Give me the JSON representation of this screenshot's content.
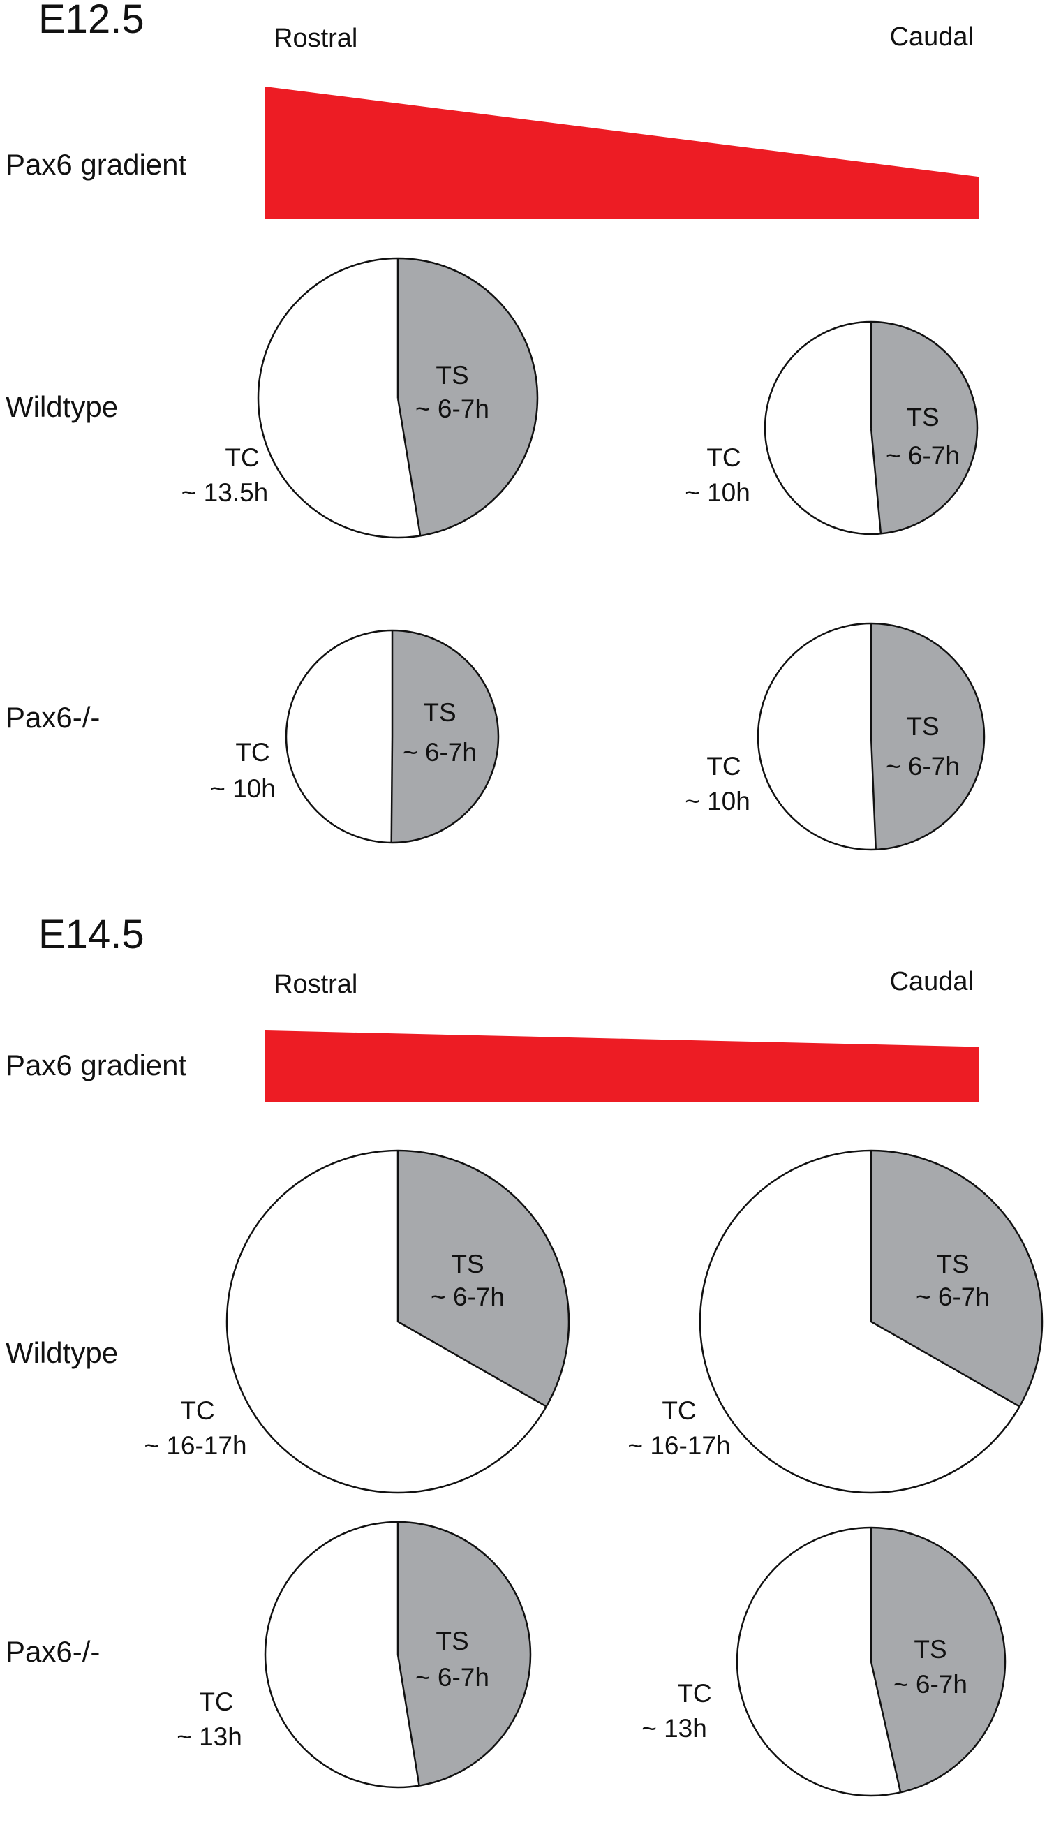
{
  "colors": {
    "gradient_fill": "#ED1C24",
    "ts_fill": "#A7A9AC",
    "tc_fill": "#FFFFFF",
    "stroke": "#111111"
  },
  "panels": [
    {
      "stage": "E12.5",
      "rostral_label": "Rostral",
      "caudal_label": "Caudal",
      "gradient_label": "Pax6 gradient",
      "gradient": {
        "shape": "wedge",
        "rostral_level": 1.0,
        "caudal_level": 0.32
      },
      "rows": [
        {
          "label": "Wildtype",
          "cycles": [
            {
              "position": "rostral",
              "ts_label": "TS",
              "ts_value": "~ 6-7h",
              "tc_label": "TC",
              "tc_value": "~ 13.5h"
            },
            {
              "position": "caudal",
              "ts_label": "TS",
              "ts_value": "~ 6-7h",
              "tc_label": "TC",
              "tc_value": "~ 10h"
            }
          ]
        },
        {
          "label": "Pax6-/-",
          "cycles": [
            {
              "position": "rostral",
              "ts_label": "TS",
              "ts_value": "~ 6-7h",
              "tc_label": "TC",
              "tc_value": "~ 10h"
            },
            {
              "position": "caudal",
              "ts_label": "TS",
              "ts_value": "~ 6-7h",
              "tc_label": "TC",
              "tc_value": "~ 10h"
            }
          ]
        }
      ]
    },
    {
      "stage": "E14.5",
      "rostral_label": "Rostral",
      "caudal_label": "Caudal",
      "gradient_label": "Pax6 gradient",
      "gradient": {
        "shape": "wedge",
        "rostral_level": 1.0,
        "caudal_level": 0.77
      },
      "rows": [
        {
          "label": "Wildtype",
          "cycles": [
            {
              "position": "rostral",
              "ts_label": "TS",
              "ts_value": "~ 6-7h",
              "tc_label": "TC",
              "tc_value": "~ 16-17h"
            },
            {
              "position": "caudal",
              "ts_label": "TS",
              "ts_value": "~ 6-7h",
              "tc_label": "TC",
              "tc_value": "~ 16-17h"
            }
          ]
        },
        {
          "label": "Pax6-/-",
          "cycles": [
            {
              "position": "rostral",
              "ts_label": "TS",
              "ts_value": "~ 6-7h",
              "tc_label": "TC",
              "tc_value": "~ 13h"
            },
            {
              "position": "caudal",
              "ts_label": "TS",
              "ts_value": "~ 6-7h",
              "tc_label": "TC",
              "tc_value": "~ 13h"
            }
          ]
        }
      ]
    }
  ]
}
